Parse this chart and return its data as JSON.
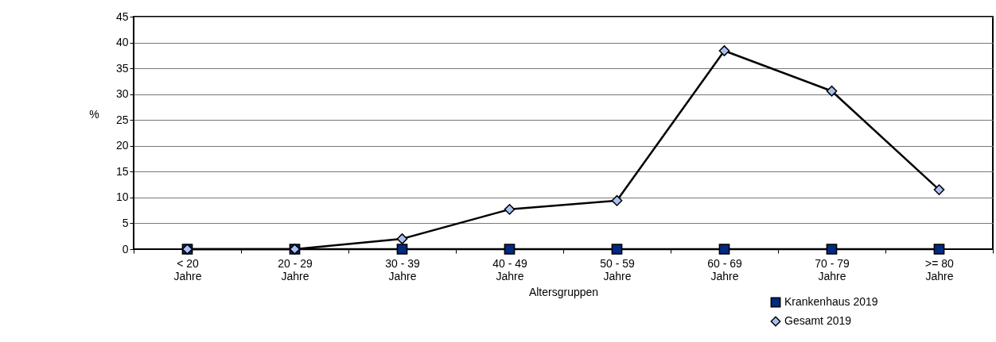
{
  "chart_data": {
    "type": "line",
    "xlabel": "Altersgruppen",
    "ylabel": "%",
    "categories": [
      "< 20 Jahre",
      "20 - 29 Jahre",
      "30 - 39 Jahre",
      "40 - 49 Jahre",
      "50 - 59 Jahre",
      "60 - 69 Jahre",
      "70 - 79 Jahre",
      ">= 80 Jahre"
    ],
    "series": [
      {
        "name": "Krankenhaus 2019",
        "color": "#002a80",
        "marker": "square",
        "values": [
          0,
          0,
          0,
          0,
          0,
          0,
          0,
          0
        ]
      },
      {
        "name": "Gesamt 2019",
        "color": "#a9c0f2",
        "marker": "diamond",
        "values": [
          0,
          0,
          2.0,
          7.7,
          9.4,
          38.4,
          30.6,
          11.5
        ]
      }
    ],
    "ylim": [
      0,
      45
    ],
    "yticks": [
      0,
      5,
      10,
      15,
      20,
      25,
      30,
      35,
      40,
      45
    ],
    "grid": "y",
    "legend": "bottom right",
    "line_style": "solid"
  }
}
